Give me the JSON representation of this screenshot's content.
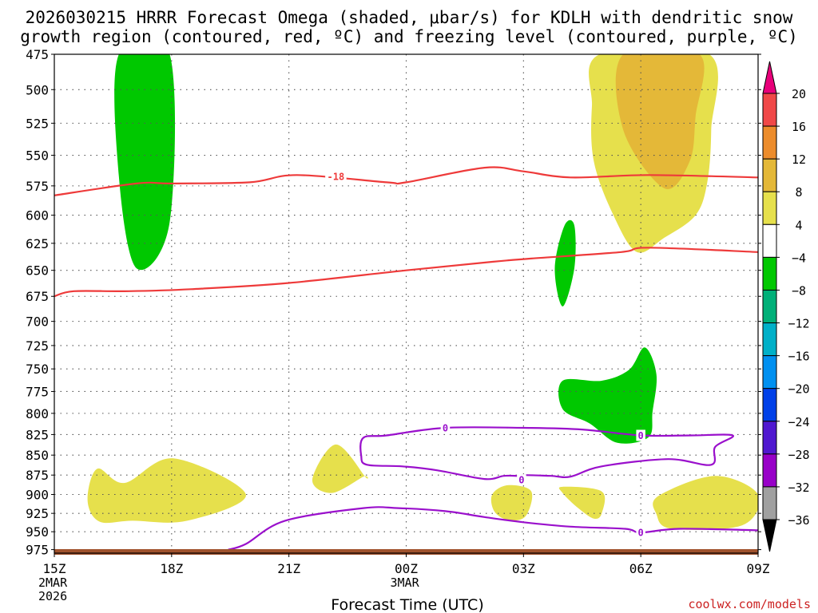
{
  "title": {
    "line1": "2026030215 HRRR Forecast Omega (shaded, μbar/s) for KDLH with dendritic snow",
    "line2": "growth region (contoured, red, ºC) and freezing level (contoured, purple, ºC)"
  },
  "xlabel": "Forecast Time (UTC)",
  "credit": "coolwx.com/models",
  "x_ticks": [
    {
      "hour": 15,
      "label": "15Z",
      "sub1": "2MAR",
      "sub2": "2026"
    },
    {
      "hour": 18,
      "label": "18Z",
      "sub1": "",
      "sub2": ""
    },
    {
      "hour": 21,
      "label": "21Z",
      "sub1": "",
      "sub2": ""
    },
    {
      "hour": 24,
      "label": "00Z",
      "sub1": "3MAR",
      "sub2": ""
    },
    {
      "hour": 27,
      "label": "03Z",
      "sub1": "",
      "sub2": ""
    },
    {
      "hour": 30,
      "label": "06Z",
      "sub1": "",
      "sub2": ""
    },
    {
      "hour": 33,
      "label": "09Z",
      "sub1": "",
      "sub2": ""
    }
  ],
  "y_ticks": [
    "475",
    "500",
    "525",
    "550",
    "575",
    "600",
    "625",
    "650",
    "675",
    "700",
    "725",
    "750",
    "775",
    "800",
    "825",
    "850",
    "875",
    "900",
    "925",
    "950",
    "975"
  ],
  "colorbar": {
    "labels": [
      "20",
      "16",
      "12",
      "8",
      "4",
      "−4",
      "−8",
      "−12",
      "−16",
      "−20",
      "−24",
      "−28",
      "−32",
      "−36"
    ],
    "colors": [
      "#e8007a",
      "#f04848",
      "#ec8c2c",
      "#e4b838",
      "#e6e04c",
      "#ffffff",
      "#00c800",
      "#00b078",
      "#00b0c8",
      "#0090f0",
      "#0040e8",
      "#5018d0",
      "#9800c8",
      "#a0a0a0",
      "#000000"
    ]
  },
  "chart_data": {
    "type": "contour",
    "x_axis": "forecast hour from 2026-03-02 15Z",
    "x_range": [
      15,
      33
    ],
    "y_axis": "pressure (hPa)",
    "y_range": [
      475,
      980
    ],
    "y_scale": "log",
    "omega_shading": [
      {
        "sign": "negative",
        "level": "-8 to -4",
        "color": "#00c800",
        "points": [
          [
            16.65,
            475
          ],
          [
            17.95,
            475
          ],
          [
            17.95,
            606
          ],
          [
            17.1,
            648
          ],
          [
            16.65,
            567
          ],
          [
            16.65,
            475
          ]
        ]
      },
      {
        "sign": "negative",
        "level": "-8 to -4",
        "color": "#00c800",
        "points": [
          [
            28.05,
            609
          ],
          [
            28.3,
            609
          ],
          [
            28.3,
            648
          ],
          [
            28.0,
            685
          ],
          [
            27.8,
            648
          ],
          [
            28.05,
            609
          ]
        ]
      },
      {
        "sign": "negative",
        "level": "-8 to -4",
        "color": "#00c800",
        "points": [
          [
            30.1,
            727
          ],
          [
            30.4,
            756
          ],
          [
            30.3,
            798
          ],
          [
            30.2,
            828
          ],
          [
            29.4,
            835
          ],
          [
            28.7,
            812
          ],
          [
            28.0,
            795
          ],
          [
            28.0,
            763
          ],
          [
            29.0,
            763
          ],
          [
            29.7,
            751
          ],
          [
            30.1,
            727
          ]
        ]
      },
      {
        "sign": "positive",
        "level": "4 to 8",
        "color": "#e6e04c",
        "points": [
          [
            28.95,
            475
          ],
          [
            31.75,
            475
          ],
          [
            31.8,
            530
          ],
          [
            31.7,
            572
          ],
          [
            31.4,
            600
          ],
          [
            30.6,
            620
          ],
          [
            29.9,
            633
          ],
          [
            29.3,
            600
          ],
          [
            28.8,
            555
          ],
          [
            28.75,
            512
          ],
          [
            28.95,
            475
          ]
        ]
      },
      {
        "sign": "positive",
        "level": "8 to 12",
        "color": "#e4b838",
        "points": [
          [
            29.55,
            475
          ],
          [
            31.5,
            475
          ],
          [
            31.4,
            520
          ],
          [
            31.25,
            555
          ],
          [
            30.6,
            577
          ],
          [
            29.55,
            530
          ],
          [
            29.55,
            475
          ]
        ]
      },
      {
        "sign": "positive",
        "level": "4 to 8",
        "color": "#e6e04c",
        "points": [
          [
            16.1,
            867
          ],
          [
            16.8,
            885
          ],
          [
            18.05,
            854
          ],
          [
            19.9,
            900
          ],
          [
            18.4,
            935
          ],
          [
            17.0,
            935
          ],
          [
            16.15,
            936
          ],
          [
            15.85,
            907
          ],
          [
            16.1,
            867
          ]
        ]
      },
      {
        "sign": "positive",
        "level": "4 to 8",
        "color": "#e6e04c",
        "points": [
          [
            21.6,
            881
          ],
          [
            22.2,
            837
          ],
          [
            22.95,
            877
          ],
          [
            22.9,
            877
          ],
          [
            22.1,
            898
          ],
          [
            21.6,
            881
          ]
        ]
      },
      {
        "sign": "positive",
        "level": "4 to 8",
        "color": "#e6e04c",
        "points": [
          [
            26.6,
            888
          ],
          [
            27.2,
            896
          ],
          [
            27.05,
            929
          ],
          [
            26.6,
            934
          ],
          [
            26.25,
            922
          ],
          [
            26.2,
            900
          ],
          [
            26.6,
            888
          ]
        ]
      },
      {
        "sign": "positive",
        "level": "4 to 8",
        "color": "#e6e04c",
        "points": [
          [
            28.0,
            890
          ],
          [
            29.0,
            896
          ],
          [
            29.0,
            925
          ],
          [
            28.8,
            932
          ],
          [
            28.4,
            918
          ],
          [
            28.0,
            898
          ],
          [
            28.0,
            890
          ]
        ]
      },
      {
        "sign": "positive",
        "level": "4 to 8",
        "color": "#e6e04c",
        "points": [
          [
            30.45,
            902
          ],
          [
            31.9,
            876
          ],
          [
            33.0,
            900
          ],
          [
            32.6,
            941
          ],
          [
            30.8,
            946
          ],
          [
            30.4,
            926
          ],
          [
            30.45,
            902
          ]
        ]
      }
    ],
    "dendritic_contours": [
      {
        "value": -18,
        "color": "#ee3a3a",
        "label": "-18",
        "label_at": [
          22.2,
          567
        ],
        "points": [
          [
            15,
            583
          ],
          [
            17.1,
            573
          ],
          [
            18,
            573
          ],
          [
            20.0,
            572
          ],
          [
            21.2,
            566
          ],
          [
            23.5,
            572
          ],
          [
            24.0,
            572
          ],
          [
            26.0,
            560
          ],
          [
            27.0,
            563
          ],
          [
            28.2,
            568
          ],
          [
            30.2,
            566
          ],
          [
            33,
            568
          ]
        ]
      },
      {
        "value": -12,
        "color": "#ee3a3a",
        "label": "",
        "label_at": null,
        "points": [
          [
            15,
            675
          ],
          [
            15.5,
            670
          ],
          [
            16.9,
            670
          ],
          [
            18.5,
            668
          ],
          [
            21.0,
            662
          ],
          [
            24.0,
            650
          ],
          [
            26.2,
            642
          ],
          [
            27.2,
            639
          ],
          [
            29.5,
            633
          ],
          [
            30.2,
            629
          ],
          [
            33,
            633
          ]
        ]
      }
    ],
    "freezing_contours": [
      {
        "value": 0,
        "color": "#9a10cc",
        "label": "0",
        "label_at": [
          25.0,
          817
        ],
        "points": [
          [
            22.9,
            829
          ],
          [
            23.5,
            826
          ],
          [
            25.0,
            817
          ],
          [
            27.0,
            817
          ],
          [
            28.5,
            819
          ],
          [
            30.0,
            826
          ],
          [
            31.3,
            826
          ],
          [
            32.35,
            826
          ],
          [
            31.9,
            840
          ],
          [
            31.8,
            862
          ],
          [
            30.7,
            855
          ],
          [
            29.0,
            864
          ],
          [
            28.2,
            877
          ],
          [
            27.7,
            876
          ],
          [
            27.0,
            875
          ],
          [
            26.9,
            876
          ],
          [
            26.5,
            876
          ],
          [
            26.0,
            880
          ],
          [
            24.8,
            869
          ],
          [
            23.9,
            864
          ],
          [
            23.0,
            862
          ],
          [
            22.85,
            851
          ],
          [
            22.9,
            829
          ]
        ]
      },
      {
        "value": 0,
        "color": "#9a10cc",
        "label": "0",
        "label_at": [
          26.95,
          881
        ],
        "points": null
      },
      {
        "value": 0,
        "color": "#9a10cc",
        "label": "0",
        "label_at": [
          30.0,
          826
        ],
        "points": null
      },
      {
        "value": 0,
        "color": "#9a10cc",
        "label": "0",
        "label_at": [
          30.0,
          951
        ],
        "points": [
          [
            19.45,
            975
          ],
          [
            19.9,
            967
          ],
          [
            20.9,
            935
          ],
          [
            22.9,
            918
          ],
          [
            23.8,
            918
          ],
          [
            25.0,
            922
          ],
          [
            26.0,
            930
          ],
          [
            27.0,
            937
          ],
          [
            28.2,
            943
          ],
          [
            29.6,
            946
          ],
          [
            30.0,
            951
          ],
          [
            31.0,
            946
          ],
          [
            33,
            948
          ]
        ]
      }
    ],
    "ground_level_hPa": 975
  }
}
